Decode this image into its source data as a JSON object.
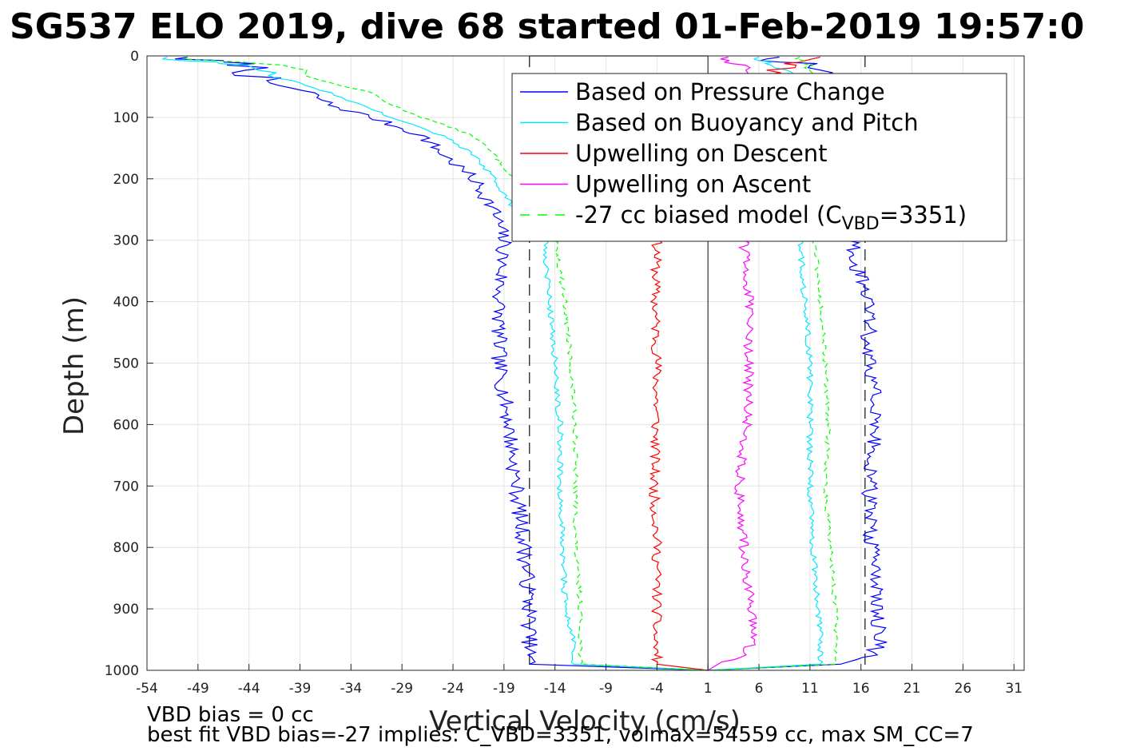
{
  "chart_data": {
    "type": "line",
    "title": "SG537 ELO 2019, dive 68 started 01-Feb-2019 19:57:0",
    "xlabel": "Vertical Velocity (cm/s)",
    "ylabel": "Depth (m)",
    "xlim": [
      -54,
      32
    ],
    "ylim": [
      0,
      1000
    ],
    "y_reversed": true,
    "grid": true,
    "legend_position": "top-right",
    "x_ticks": [
      "-54",
      "-49",
      "-44",
      "-39",
      "-34",
      "-29",
      "-24",
      "-19",
      "-14",
      "-9",
      "-4",
      "1",
      "6",
      "11",
      "16",
      "21",
      "26",
      "31"
    ],
    "y_ticks": [
      "0",
      "100",
      "200",
      "300",
      "400",
      "500",
      "600",
      "700",
      "800",
      "900",
      "1000"
    ],
    "legend": [
      {
        "text": "Based on Pressure Change",
        "color": "#0000ff",
        "dash": false
      },
      {
        "text": "Based on Buoyancy and Pitch",
        "color": "#00e8ff",
        "dash": false
      },
      {
        "text": "Upwelling on Descent",
        "color": "#ff0000",
        "dash": false
      },
      {
        "text": "Upwelling on Ascent",
        "color": "#ff00ff",
        "dash": false
      },
      {
        "text": "-27 cc biased model (C",
        "sub": "VBD",
        "tail": "=3351)",
        "color": "#00ff00",
        "dash": true
      }
    ],
    "reference_lines": {
      "solid_x": [
        1
      ],
      "dashed_x": [
        -16.5,
        16.4
      ],
      "rect_top_x": [
        -16.5,
        1
      ]
    },
    "depth": [
      5,
      15,
      40,
      60,
      80,
      100,
      130,
      160,
      200,
      250,
      300,
      400,
      500,
      600,
      700,
      800,
      900,
      950,
      975,
      990
    ],
    "series": [
      {
        "name": "Based on Pressure Change",
        "color": "#0000ff",
        "descent": [
          -50,
          -44,
          -43,
          -38,
          -36,
          -32,
          -27,
          -25,
          -22,
          -20,
          -19,
          -19.5,
          -19.5,
          -18.5,
          -17.8,
          -17,
          -16.5,
          -16.5,
          -16.5,
          -16.5
        ],
        "ascent": [
          8,
          10,
          12,
          14,
          15,
          15,
          15,
          15,
          15,
          15,
          15,
          16.5,
          17,
          17.5,
          16.8,
          17,
          17.5,
          18,
          17,
          14
        ]
      },
      {
        "name": "Based on Buoyancy and Pitch",
        "color": "#00e8ff",
        "descent": [
          -52,
          -44,
          -40,
          -36,
          -33,
          -30,
          -25,
          -22,
          -20,
          -18,
          -15,
          -14.5,
          -14,
          -13.5,
          -13.5,
          -13.2,
          -13,
          -12.2,
          -12.2,
          -12.2
        ],
        "ascent": [
          6,
          8,
          9.5,
          10,
          10.5,
          10.5,
          10.5,
          10.5,
          10.5,
          10.5,
          10,
          10.5,
          11,
          11,
          11,
          11.3,
          11.8,
          12,
          12,
          12
        ]
      },
      {
        "name": "Upwelling on Descent",
        "color": "#ff0000",
        "descent": [
          12,
          9,
          6,
          -4,
          -4,
          -4,
          -4,
          -4,
          -4,
          -4,
          -4,
          -4.2,
          -4,
          -4.1,
          -4.3,
          -4,
          -4,
          -4.2,
          -4,
          -4
        ]
      },
      {
        "name": "Upwelling on Ascent",
        "color": "#ff00ff",
        "ascent": [
          3,
          5,
          4,
          4,
          4,
          4,
          4,
          4,
          4,
          4,
          4.5,
          5,
          5,
          4.8,
          4,
          4.5,
          5.2,
          5.5,
          4.5,
          2
        ]
      },
      {
        "name": "-27 cc biased model (CVBD=3351)",
        "color": "#00ff00",
        "descent": [
          -50,
          -40,
          -37,
          -32,
          -30,
          -27,
          -22,
          -20,
          -18,
          -16,
          -14,
          -13,
          -12.5,
          -12,
          -12,
          -12,
          -11.5,
          -11.5,
          -11.5,
          -11.5
        ],
        "ascent": [
          10,
          11,
          11.5,
          11.5,
          11.5,
          11.5,
          11.5,
          11.5,
          11.5,
          11.5,
          11.5,
          12,
          12.5,
          12.8,
          12.5,
          13,
          13.5,
          13.5,
          13.5,
          13.5
        ]
      }
    ]
  },
  "footer": {
    "vbd_bias": "VBD bias = 0 cc",
    "best_fit": "best fit VBD bias=-27 implies: C_VBD=3351, volmax=54559 cc, max SM_CC=7"
  }
}
